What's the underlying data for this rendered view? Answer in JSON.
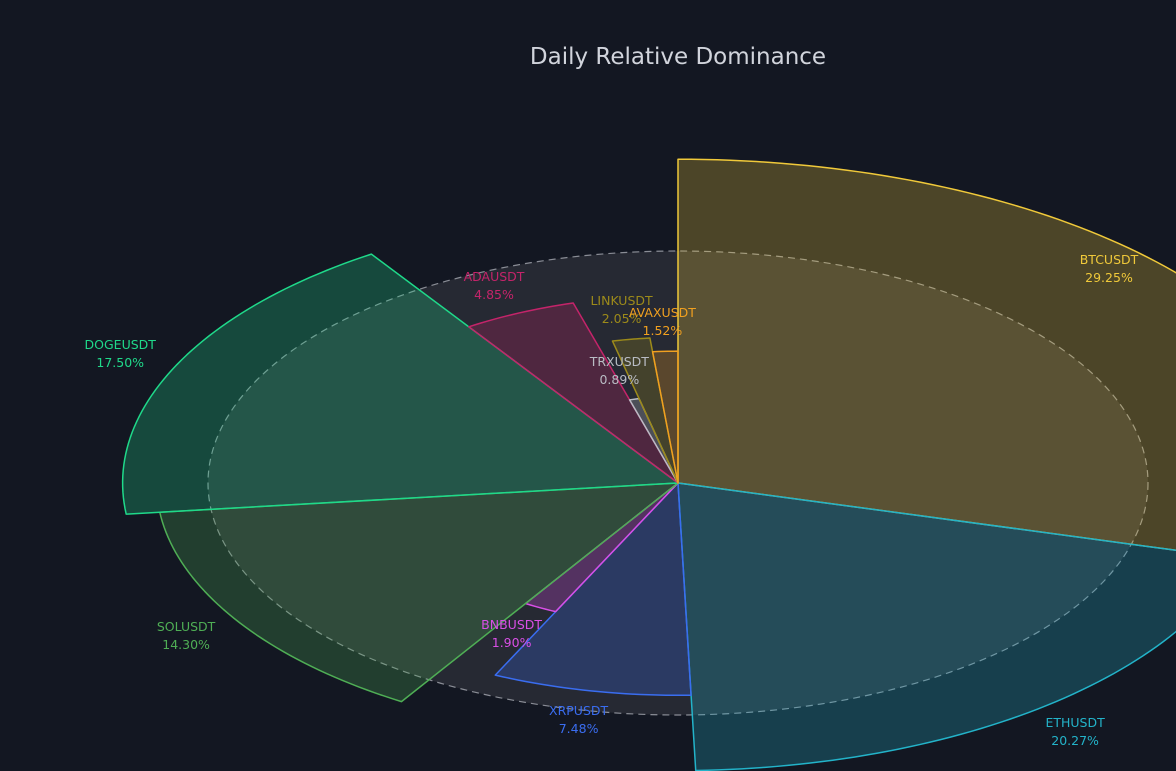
{
  "colors": {
    "background": "#131722",
    "text": "#d1d4dc",
    "ring": "#2a2d36"
  },
  "chart_data": {
    "type": "pie",
    "title": "Daily Relative Dominance",
    "slices": [
      {
        "name": "BTCUSDT",
        "value": 29.25,
        "percent_label": "29.25%",
        "color": "#f0c93a"
      },
      {
        "name": "ETHUSDT",
        "value": 20.27,
        "percent_label": "20.27%",
        "color": "#23b3c9"
      },
      {
        "name": "XRPUSDT",
        "value": 7.48,
        "percent_label": "7.48%",
        "color": "#3a6df0"
      },
      {
        "name": "BNBUSDT",
        "value": 1.9,
        "percent_label": "1.90%",
        "color": "#d94fe6"
      },
      {
        "name": "SOLUSDT",
        "value": 14.3,
        "percent_label": "14.30%",
        "color": "#4fae55"
      },
      {
        "name": "DOGEUSDT",
        "value": 17.5,
        "percent_label": "17.50%",
        "color": "#1fd98a"
      },
      {
        "name": "ADAUSDT",
        "value": 4.85,
        "percent_label": "4.85%",
        "color": "#c4246a"
      },
      {
        "name": "TRXUSDT",
        "value": 0.89,
        "percent_label": "0.89%",
        "color": "#b9bcc4"
      },
      {
        "name": "LINKUSDT",
        "value": 2.05,
        "percent_label": "2.05%",
        "color": "#9c8a1a"
      },
      {
        "name": "AVAXUSDT",
        "value": 1.52,
        "percent_label": "1.52%",
        "color": "#f0a020"
      }
    ]
  }
}
